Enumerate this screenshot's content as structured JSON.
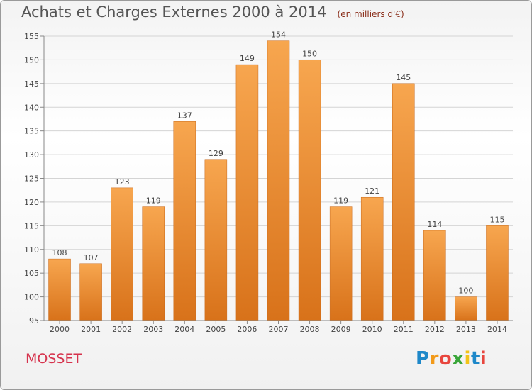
{
  "title": "Achats et Charges Externes 2000 à 2014",
  "subtitle": "(en milliers d'€)",
  "commune": "MOSSET",
  "logo": {
    "text": "Proxiti",
    "letters": [
      {
        "ch": "P",
        "color": "#1e88c9"
      },
      {
        "ch": "r",
        "color": "#f29a1a"
      },
      {
        "ch": "o",
        "color": "#e8463e"
      },
      {
        "ch": "x",
        "color": "#3aa63a"
      },
      {
        "ch": "i",
        "color": "#f2c318"
      },
      {
        "ch": "t",
        "color": "#1e88c9"
      },
      {
        "ch": "i",
        "color": "#e8463e"
      }
    ]
  },
  "chart_data": {
    "type": "bar",
    "categories": [
      "2000",
      "2001",
      "2002",
      "2003",
      "2004",
      "2005",
      "2006",
      "2007",
      "2008",
      "2009",
      "2010",
      "2011",
      "2012",
      "2013",
      "2014"
    ],
    "values": [
      108,
      107,
      123,
      119,
      137,
      129,
      149,
      154,
      150,
      119,
      121,
      145,
      114,
      100,
      115
    ],
    "ylim": [
      95,
      155
    ],
    "yticks": [
      95,
      100,
      105,
      110,
      115,
      120,
      125,
      130,
      135,
      140,
      145,
      150,
      155
    ],
    "grid": true,
    "bar_color_top": "#f7a64f",
    "bar_color_bottom": "#d8721a"
  }
}
